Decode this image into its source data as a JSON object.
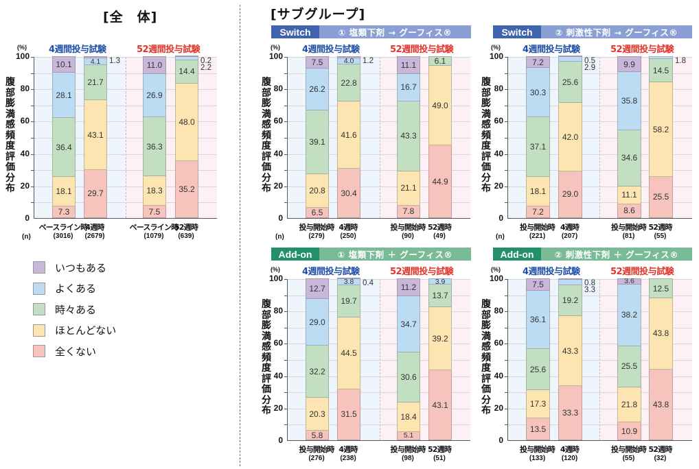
{
  "titles": {
    "overall": "[全　体]",
    "subgroup": "[サブグループ]"
  },
  "common": {
    "y_unit": "(%)",
    "y_axis_title": "腹部膨満感頻度評価分布",
    "y_ticks": [
      "0",
      "20",
      "40",
      "60",
      "80",
      "100"
    ],
    "trial_4w": "4週間投与試験",
    "trial_52w": "52週間投与試験",
    "n_label": "(n)"
  },
  "legend": {
    "items": [
      {
        "label": "いつもある",
        "color": "#c8b7d9"
      },
      {
        "label": "よくある",
        "color": "#bcdcf4"
      },
      {
        "label": "時々ある",
        "color": "#c3dfc2"
      },
      {
        "label": "ほとんどない",
        "color": "#fde5b1"
      },
      {
        "label": "全くない",
        "color": "#f6c4bd"
      }
    ]
  },
  "bands": {
    "s1": {
      "tag": "Switch",
      "desc": "① 塩類下剤 → グーフィス®"
    },
    "s2": {
      "tag": "Switch",
      "desc": "② 刺激性下剤 → グーフィス®"
    },
    "a1": {
      "tag": "Add-on",
      "desc": "① 塩類下剤 ＋ グーフィス®"
    },
    "a2": {
      "tag": "Add-on",
      "desc": "② 刺激性下剤 ＋ グーフィス®"
    }
  },
  "colors": {
    "always": "#c8b7d9",
    "often": "#bcdcf4",
    "sometimes": "#c3dfc2",
    "rarely": "#fde5b1",
    "never": "#f6c4bd",
    "trial_4w_text": "#1f4fa8",
    "trial_52w_text": "#e2352a",
    "switch_tag": "#3f63ad",
    "addon_tag": "#23906a"
  },
  "chart_data": [
    {
      "type": "bar",
      "stacked": true,
      "title": "全体",
      "ylabel": "腹部膨満感頻度評価分布 (%)",
      "ylim": [
        0,
        100
      ],
      "categories": [
        "ベースライン時",
        "4週時",
        "ベースライン時",
        "52週時"
      ],
      "n": [
        "(3016)",
        "(2679)",
        "(1079)",
        "(639)"
      ],
      "groups": [
        "4週間投与試験",
        "4週間投与試験",
        "52週間投与試験",
        "52週間投与試験"
      ],
      "series": [
        {
          "name": "全くない",
          "values": [
            "7.3",
            "29.7",
            "7.5",
            "35.2"
          ]
        },
        {
          "name": "ほとんどない",
          "values": [
            "18.1",
            "43.1",
            "18.3",
            "48.0"
          ]
        },
        {
          "name": "時々ある",
          "values": [
            "36.4",
            "21.7",
            "36.3",
            "14.4"
          ]
        },
        {
          "name": "よくある",
          "values": [
            "28.1",
            "4.1",
            "26.9",
            "2.2"
          ]
        },
        {
          "name": "いつもある",
          "values": [
            "10.1",
            "1.3",
            "11.0",
            "0.2"
          ]
        }
      ]
    },
    {
      "type": "bar",
      "stacked": true,
      "title": "Switch ① 塩類下剤 → グーフィス®",
      "ylabel": "腹部膨満感頻度評価分布 (%)",
      "ylim": [
        0,
        100
      ],
      "categories": [
        "投与開始時",
        "4週時",
        "投与開始時",
        "52週時"
      ],
      "n": [
        "(279)",
        "(250)",
        "(90)",
        "(49)"
      ],
      "groups": [
        "4週間投与試験",
        "4週間投与試験",
        "52週間投与試験",
        "52週間投与試験"
      ],
      "series": [
        {
          "name": "全くない",
          "values": [
            "6.5",
            "30.4",
            "7.8",
            "44.9"
          ]
        },
        {
          "name": "ほとんどない",
          "values": [
            "20.8",
            "41.6",
            "21.1",
            "49.0"
          ]
        },
        {
          "name": "時々ある",
          "values": [
            "39.1",
            "22.8",
            "43.3",
            "6.1"
          ]
        },
        {
          "name": "よくある",
          "values": [
            "26.2",
            "4.0",
            "16.7",
            "0"
          ]
        },
        {
          "name": "いつもある",
          "values": [
            "7.5",
            "1.2",
            "11.1",
            "0"
          ]
        }
      ]
    },
    {
      "type": "bar",
      "stacked": true,
      "title": "Switch ② 刺激性下剤 → グーフィス®",
      "ylabel": "腹部膨満感頻度評価分布 (%)",
      "ylim": [
        0,
        100
      ],
      "categories": [
        "投与開始時",
        "4週時",
        "投与開始時",
        "52週時"
      ],
      "n": [
        "(221)",
        "(207)",
        "(81)",
        "(55)"
      ],
      "groups": [
        "4週間投与試験",
        "4週間投与試験",
        "52週間投与試験",
        "52週間投与試験"
      ],
      "series": [
        {
          "name": "全くない",
          "values": [
            "7.2",
            "29.0",
            "8.6",
            "25.5"
          ]
        },
        {
          "name": "ほとんどない",
          "values": [
            "18.1",
            "42.0",
            "11.1",
            "58.2"
          ]
        },
        {
          "name": "時々ある",
          "values": [
            "37.1",
            "25.6",
            "34.6",
            "14.5"
          ]
        },
        {
          "name": "よくある",
          "values": [
            "30.3",
            "2.9",
            "35.8",
            "1.8"
          ]
        },
        {
          "name": "いつもある",
          "values": [
            "7.2",
            "0.5",
            "9.9",
            "0"
          ]
        }
      ]
    },
    {
      "type": "bar",
      "stacked": true,
      "title": "Add-on ① 塩類下剤 ＋ グーフィス®",
      "ylabel": "腹部膨満感頻度評価分布 (%)",
      "ylim": [
        0,
        100
      ],
      "categories": [
        "投与開始時",
        "4週時",
        "投与開始時",
        "52週時"
      ],
      "n": [
        "(276)",
        "(238)",
        "(98)",
        "(51)"
      ],
      "groups": [
        "4週間投与試験",
        "4週間投与試験",
        "52週間投与試験",
        "52週間投与試験"
      ],
      "series": [
        {
          "name": "全くない",
          "values": [
            "5.8",
            "31.5",
            "5.1",
            "43.1"
          ]
        },
        {
          "name": "ほとんどない",
          "values": [
            "20.3",
            "44.5",
            "18.4",
            "39.2"
          ]
        },
        {
          "name": "時々ある",
          "values": [
            "32.2",
            "19.7",
            "30.6",
            "13.7"
          ]
        },
        {
          "name": "よくある",
          "values": [
            "29.0",
            "3.8",
            "34.7",
            "3.9"
          ]
        },
        {
          "name": "いつもある",
          "values": [
            "12.7",
            "0.4",
            "11.2",
            "0"
          ]
        }
      ]
    },
    {
      "type": "bar",
      "stacked": true,
      "title": "Add-on ② 刺激性下剤 ＋ グーフィス®",
      "ylabel": "腹部膨満感頻度評価分布 (%)",
      "ylim": [
        0,
        100
      ],
      "categories": [
        "投与開始時",
        "4週時",
        "投与開始時",
        "52週時"
      ],
      "n": [
        "(133)",
        "(120)",
        "(55)",
        "(32)"
      ],
      "groups": [
        "4週間投与試験",
        "4週間投与試験",
        "52週間投与試験",
        "52週間投与試験"
      ],
      "series": [
        {
          "name": "全くない",
          "values": [
            "13.5",
            "33.3",
            "10.9",
            "43.8"
          ]
        },
        {
          "name": "ほとんどない",
          "values": [
            "17.3",
            "43.3",
            "21.8",
            "43.8"
          ]
        },
        {
          "name": "時々ある",
          "values": [
            "25.6",
            "19.2",
            "25.5",
            "12.5"
          ]
        },
        {
          "name": "よくある",
          "values": [
            "36.1",
            "3.3",
            "38.2",
            "0"
          ]
        },
        {
          "name": "いつもある",
          "values": [
            "7.5",
            "0.8",
            "3.6",
            "0"
          ]
        }
      ]
    }
  ]
}
